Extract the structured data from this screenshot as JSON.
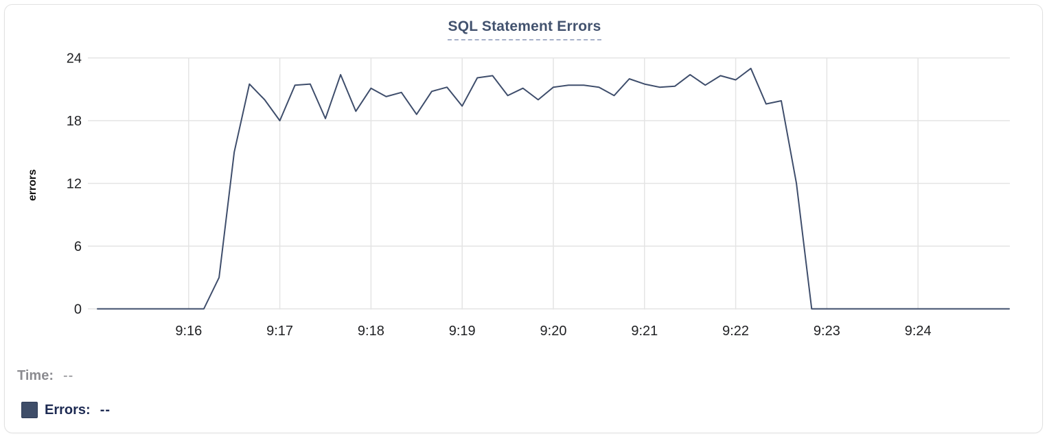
{
  "card": {
    "title": "SQL Statement Errors"
  },
  "chart_data": {
    "type": "line",
    "title": "SQL Statement Errors",
    "xlabel": "",
    "ylabel": "errors",
    "ylim": [
      0,
      24
    ],
    "yticks": [
      0,
      6,
      12,
      18,
      24
    ],
    "xtick_labels": [
      "9:16",
      "9:17",
      "9:18",
      "9:19",
      "9:20",
      "9:21",
      "9:22",
      "9:23",
      "9:24"
    ],
    "x_domain": [
      "9:15:00",
      "9:25:00"
    ],
    "interval_seconds": 10,
    "grid": true,
    "legend_position": "bottom-left",
    "x": [
      "9:15:00",
      "9:15:10",
      "9:15:20",
      "9:15:30",
      "9:15:40",
      "9:15:50",
      "9:16:00",
      "9:16:10",
      "9:16:20",
      "9:16:30",
      "9:16:40",
      "9:16:50",
      "9:17:00",
      "9:17:10",
      "9:17:20",
      "9:17:30",
      "9:17:40",
      "9:17:50",
      "9:18:00",
      "9:18:10",
      "9:18:20",
      "9:18:30",
      "9:18:40",
      "9:18:50",
      "9:19:00",
      "9:19:10",
      "9:19:20",
      "9:19:30",
      "9:19:40",
      "9:19:50",
      "9:20:00",
      "9:20:10",
      "9:20:20",
      "9:20:30",
      "9:20:40",
      "9:20:50",
      "9:21:00",
      "9:21:10",
      "9:21:20",
      "9:21:30",
      "9:21:40",
      "9:21:50",
      "9:22:00",
      "9:22:10",
      "9:22:20",
      "9:22:30",
      "9:22:40",
      "9:22:50",
      "9:23:00",
      "9:23:10",
      "9:23:20",
      "9:23:30",
      "9:23:40",
      "9:23:50",
      "9:24:00",
      "9:24:10",
      "9:24:20",
      "9:24:30",
      "9:24:40",
      "9:24:50",
      "9:25:00"
    ],
    "series": [
      {
        "name": "Errors",
        "values": [
          0,
          0,
          0,
          0,
          0,
          0,
          0,
          0,
          3,
          15,
          21.5,
          20,
          18,
          21.4,
          21.5,
          18.2,
          22.4,
          18.9,
          21.1,
          20.3,
          20.7,
          18.6,
          20.8,
          21.2,
          19.4,
          22.1,
          22.3,
          20.4,
          21.1,
          20,
          21.2,
          21.4,
          21.4,
          21.2,
          20.4,
          22,
          21.5,
          21.2,
          21.3,
          22.4,
          21.4,
          22.3,
          21.9,
          23,
          19.6,
          19.9,
          12,
          0,
          0,
          0,
          0,
          0,
          0,
          0,
          0,
          0,
          0,
          0,
          0,
          0,
          0
        ]
      }
    ]
  },
  "tooltip": {
    "time_label": "Time:",
    "time_value": "--",
    "errors_label": "Errors:",
    "errors_value": "--",
    "swatch_color": "#3e4d68"
  },
  "colors": {
    "line": "#3e4d6b",
    "grid": "#e4e4e4",
    "tick_label": "#1f2023",
    "title": "#42526e",
    "title_underline": "#a6b0c8",
    "time_text": "#8b8b90",
    "errors_text": "#1d2a52",
    "card_border": "#e1e1e1"
  }
}
